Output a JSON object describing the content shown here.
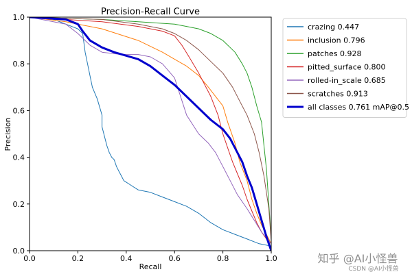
{
  "chart_data": {
    "type": "line",
    "title": "Precision-Recall Curve",
    "xlabel": "Recall",
    "ylabel": "Precision",
    "xlim": [
      0.0,
      1.0
    ],
    "ylim": [
      0.0,
      1.0
    ],
    "xticks": [
      "0.0",
      "0.2",
      "0.4",
      "0.6",
      "0.8",
      "1.0"
    ],
    "yticks": [
      "0.0",
      "0.2",
      "0.4",
      "0.6",
      "0.8",
      "1.0"
    ],
    "grid": false,
    "legend_position": "outside-right-top",
    "series": [
      {
        "name": "crazing 0.447",
        "color": "#1f77b4",
        "x": [
          0.0,
          0.1,
          0.15,
          0.2,
          0.22,
          0.23,
          0.25,
          0.26,
          0.28,
          0.3,
          0.3,
          0.32,
          0.33,
          0.34,
          0.35,
          0.36,
          0.37,
          0.38,
          0.39,
          0.42,
          0.45,
          0.5,
          0.55,
          0.6,
          0.65,
          0.7,
          0.75,
          0.8,
          0.85,
          0.9,
          0.95,
          1.0
        ],
        "y": [
          1.0,
          0.99,
          0.97,
          0.95,
          0.93,
          0.85,
          0.75,
          0.7,
          0.65,
          0.58,
          0.53,
          0.45,
          0.42,
          0.4,
          0.39,
          0.36,
          0.34,
          0.32,
          0.3,
          0.28,
          0.26,
          0.25,
          0.23,
          0.21,
          0.19,
          0.16,
          0.12,
          0.09,
          0.07,
          0.05,
          0.03,
          0.02
        ]
      },
      {
        "name": "inclusion 0.796",
        "color": "#ff7f0e",
        "x": [
          0.0,
          0.15,
          0.3,
          0.45,
          0.55,
          0.6,
          0.65,
          0.7,
          0.74,
          0.77,
          0.8,
          0.82,
          0.85,
          0.87,
          0.9,
          0.92,
          0.94,
          0.96,
          0.98,
          1.0
        ],
        "y": [
          1.0,
          0.98,
          0.95,
          0.9,
          0.85,
          0.82,
          0.79,
          0.75,
          0.7,
          0.66,
          0.62,
          0.55,
          0.46,
          0.38,
          0.3,
          0.22,
          0.16,
          0.11,
          0.07,
          0.03
        ]
      },
      {
        "name": "patches 0.928",
        "color": "#2ca02c",
        "x": [
          0.0,
          0.3,
          0.45,
          0.6,
          0.65,
          0.7,
          0.75,
          0.8,
          0.85,
          0.88,
          0.9,
          0.92,
          0.94,
          0.96,
          0.97,
          0.98,
          0.99,
          1.0
        ],
        "y": [
          1.0,
          0.99,
          0.98,
          0.97,
          0.96,
          0.95,
          0.93,
          0.9,
          0.85,
          0.8,
          0.76,
          0.7,
          0.62,
          0.55,
          0.45,
          0.35,
          0.2,
          0.05
        ]
      },
      {
        "name": "pitted_surface 0.800",
        "color": "#d62728",
        "x": [
          0.0,
          0.3,
          0.45,
          0.55,
          0.6,
          0.63,
          0.66,
          0.7,
          0.75,
          0.78,
          0.8,
          0.82,
          0.84,
          0.86,
          0.88,
          0.9,
          0.92,
          0.94,
          0.96,
          0.98,
          1.0
        ],
        "y": [
          1.0,
          0.98,
          0.96,
          0.94,
          0.92,
          0.88,
          0.83,
          0.76,
          0.66,
          0.58,
          0.5,
          0.44,
          0.38,
          0.33,
          0.28,
          0.22,
          0.17,
          0.12,
          0.08,
          0.05,
          0.03
        ]
      },
      {
        "name": "rolled-in_scale 0.685",
        "color": "#9467bd",
        "x": [
          0.0,
          0.15,
          0.2,
          0.25,
          0.3,
          0.38,
          0.45,
          0.5,
          0.55,
          0.6,
          0.65,
          0.7,
          0.74,
          0.77,
          0.8,
          0.83,
          0.86,
          0.9,
          0.93,
          0.96,
          1.0
        ],
        "y": [
          1.0,
          0.97,
          0.93,
          0.88,
          0.85,
          0.84,
          0.84,
          0.83,
          0.8,
          0.74,
          0.58,
          0.5,
          0.46,
          0.42,
          0.36,
          0.3,
          0.24,
          0.18,
          0.13,
          0.08,
          0.03
        ]
      },
      {
        "name": "scratches 0.913",
        "color": "#8c564b",
        "x": [
          0.0,
          0.3,
          0.45,
          0.55,
          0.6,
          0.65,
          0.7,
          0.75,
          0.8,
          0.84,
          0.87,
          0.9,
          0.93,
          0.95,
          0.97,
          0.99,
          1.0
        ],
        "y": [
          1.0,
          0.99,
          0.97,
          0.95,
          0.93,
          0.9,
          0.86,
          0.81,
          0.76,
          0.7,
          0.64,
          0.58,
          0.5,
          0.42,
          0.32,
          0.18,
          0.04
        ]
      },
      {
        "name": "all classes 0.761 mAP@0.5",
        "color": "#0000cd",
        "thick": true,
        "x": [
          0.0,
          0.15,
          0.2,
          0.22,
          0.25,
          0.3,
          0.35,
          0.45,
          0.5,
          0.55,
          0.6,
          0.65,
          0.7,
          0.75,
          0.8,
          0.83,
          0.85,
          0.88,
          0.9,
          0.92,
          0.94,
          0.96,
          0.98,
          1.0
        ],
        "y": [
          1.0,
          0.99,
          0.97,
          0.94,
          0.9,
          0.87,
          0.85,
          0.82,
          0.79,
          0.75,
          0.71,
          0.66,
          0.61,
          0.56,
          0.52,
          0.48,
          0.44,
          0.38,
          0.32,
          0.27,
          0.2,
          0.13,
          0.06,
          0.0
        ]
      }
    ]
  },
  "watermark": {
    "main": "知乎 @AI小怪兽",
    "sub": "CSDN @AI小怪兽"
  }
}
